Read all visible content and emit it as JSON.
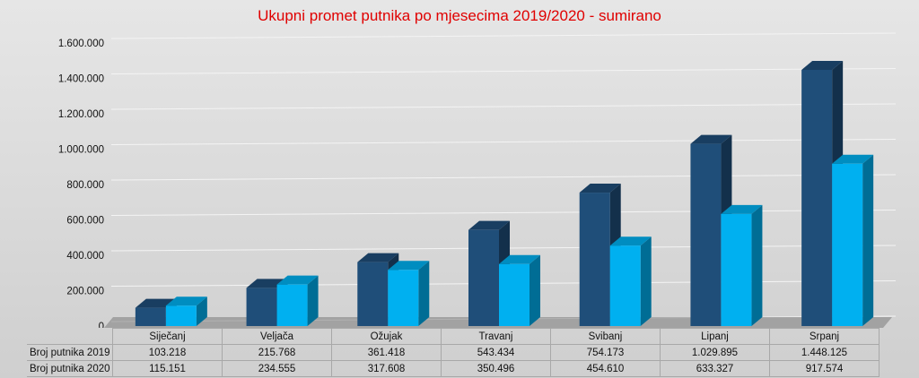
{
  "chart_data": {
    "type": "bar",
    "title": "Ukupni promet putnika po mjesecima 2019/2020 - sumirano",
    "categories": [
      "Siječanj",
      "Veljača",
      "Ožujak",
      "Travanj",
      "Svibanj",
      "Lipanj",
      "Srpanj"
    ],
    "series": [
      {
        "name": "Broj putnika 2019",
        "values": [
          103218,
          215768,
          361418,
          543434,
          754173,
          1029895,
          1448125
        ],
        "labels": [
          "103.218",
          "215.768",
          "361.418",
          "543.434",
          "754.173",
          "1.029.895",
          "1.448.125"
        ],
        "color": "#1f4e79"
      },
      {
        "name": "Broj putnika 2020",
        "values": [
          115151,
          234555,
          317608,
          350496,
          454610,
          633327,
          917574
        ],
        "labels": [
          "115.151",
          "234.555",
          "317.608",
          "350.496",
          "454.610",
          "633.327",
          "917.574"
        ],
        "color": "#00b0f0"
      }
    ],
    "ylim": [
      0,
      1600000
    ],
    "yticks": [
      "0",
      "200.000",
      "400.000",
      "600.000",
      "800.000",
      "1.000.000",
      "1.200.000",
      "1.400.000",
      "1.600.000"
    ],
    "grid": true,
    "legend": "data-table-below"
  }
}
